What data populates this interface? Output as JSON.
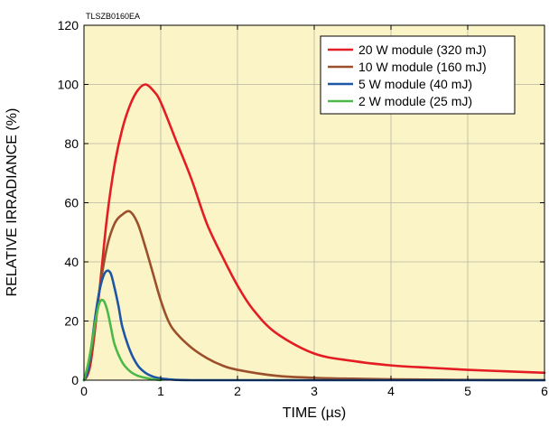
{
  "chart_data": {
    "type": "line",
    "title": "",
    "figure_code": "TLSZB0160EA",
    "xlabel": "TIME (µs)",
    "ylabel": "RELATIVE IRRADIANCE (%)",
    "xlim": [
      0,
      6
    ],
    "ylim": [
      0,
      120
    ],
    "x_ticks": [
      "0",
      "1",
      "2",
      "3",
      "4",
      "5",
      "6"
    ],
    "y_ticks": [
      "0",
      "20",
      "40",
      "60",
      "80",
      "100",
      "120"
    ],
    "grid": true,
    "background_color": "#fbf4c6",
    "legend_position": "top-right",
    "series": [
      {
        "name": "20 W module (320 mJ)",
        "color": "#e31d23",
        "x": [
          0,
          0.05,
          0.1,
          0.2,
          0.3,
          0.4,
          0.5,
          0.6,
          0.7,
          0.8,
          0.9,
          1.0,
          1.2,
          1.4,
          1.6,
          1.8,
          2.0,
          2.2,
          2.5,
          3.0,
          3.5,
          4.0,
          4.5,
          5.0,
          5.5,
          6.0
        ],
        "y": [
          0,
          2,
          8,
          30,
          55,
          73,
          85,
          93,
          98,
          100,
          98,
          94,
          81,
          68,
          53,
          42,
          32,
          24,
          16,
          9,
          6.5,
          5,
          4.2,
          3.5,
          3,
          2.5
        ]
      },
      {
        "name": "10 W module (160 mJ)",
        "color": "#9b4f2a",
        "x": [
          0,
          0.05,
          0.1,
          0.2,
          0.3,
          0.4,
          0.5,
          0.6,
          0.7,
          0.8,
          0.9,
          1.0,
          1.1,
          1.2,
          1.4,
          1.6,
          1.8,
          2.0,
          2.5,
          3.0,
          3.5,
          4.0,
          5.0,
          6.0
        ],
        "y": [
          0,
          3,
          10,
          30,
          45,
          53,
          56,
          57,
          53,
          45,
          36,
          27,
          20,
          16,
          11,
          7.5,
          5,
          3.5,
          1.5,
          0.8,
          0.5,
          0.3,
          0.1,
          0
        ]
      },
      {
        "name": "5 W module (40 mJ)",
        "color": "#1e56a6",
        "x": [
          0,
          0.05,
          0.1,
          0.15,
          0.2,
          0.25,
          0.3,
          0.35,
          0.4,
          0.45,
          0.5,
          0.6,
          0.7,
          0.8,
          0.9,
          1.0,
          1.1,
          1.2,
          1.4,
          2.0,
          3.0,
          4.0,
          5.0,
          6.0
        ],
        "y": [
          0,
          3,
          12,
          22,
          30,
          35,
          37,
          36,
          31,
          25,
          18,
          10,
          5,
          2.5,
          1.2,
          0.6,
          0.3,
          0.1,
          0,
          0,
          0,
          0,
          0,
          0
        ]
      },
      {
        "name": "2 W module (25 mJ)",
        "color": "#4cb848",
        "x": [
          0,
          0.05,
          0.1,
          0.15,
          0.2,
          0.25,
          0.3,
          0.35,
          0.4,
          0.5,
          0.6,
          0.7,
          0.8,
          0.9,
          1.0
        ],
        "y": [
          0,
          5,
          12,
          20,
          26,
          27,
          24,
          18,
          12,
          6,
          3,
          1.5,
          0.8,
          0.3,
          0
        ]
      }
    ]
  }
}
